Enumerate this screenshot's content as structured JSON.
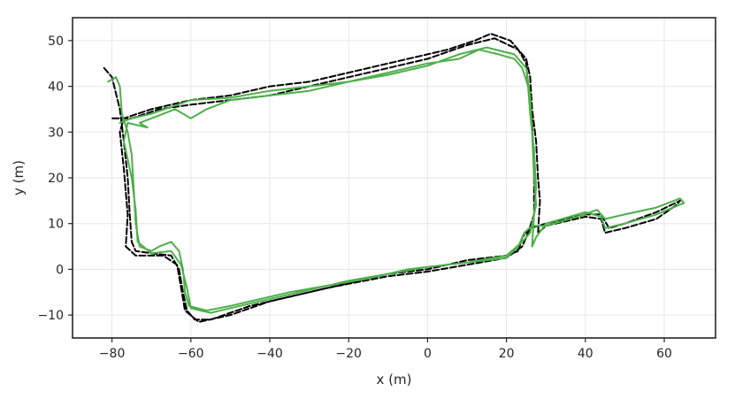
{
  "chart_data": {
    "type": "line",
    "title": "",
    "xlabel": "x (m)",
    "ylabel": "y (m)",
    "xlim": [
      -90,
      73
    ],
    "ylim": [
      -15,
      55
    ],
    "xticks": [
      -80,
      -60,
      -40,
      -20,
      0,
      20,
      40,
      60
    ],
    "yticks": [
      -10,
      0,
      10,
      20,
      30,
      40,
      50
    ],
    "xtick_labels": [
      "−80",
      "−60",
      "−40",
      "−20",
      "0",
      "20",
      "40",
      "60"
    ],
    "ytick_labels": [
      "−10",
      "0",
      "10",
      "20",
      "30",
      "40",
      "50"
    ],
    "grid": true,
    "legend": "none",
    "series": [
      {
        "color": "#000000",
        "style": "dashed",
        "points": [
          [
            -82,
            44
          ],
          [
            -80,
            42
          ],
          [
            -78,
            35
          ],
          [
            -77,
            28
          ],
          [
            -76,
            20
          ],
          [
            -75.5,
            12
          ],
          [
            -75,
            6
          ],
          [
            -74,
            4
          ],
          [
            -70,
            3.5
          ],
          [
            -65,
            3
          ],
          [
            -63,
            0
          ],
          [
            -62,
            -5
          ],
          [
            -61,
            -9
          ],
          [
            -59,
            -11
          ],
          [
            -55,
            -11
          ],
          [
            -45,
            -8
          ],
          [
            -35,
            -6
          ],
          [
            -20,
            -3
          ],
          [
            -10,
            -1
          ],
          [
            0,
            0
          ],
          [
            10,
            2
          ],
          [
            20,
            3
          ],
          [
            23,
            4
          ],
          [
            24,
            7
          ],
          [
            26,
            9
          ],
          [
            30,
            10
          ],
          [
            40,
            12
          ],
          [
            44,
            12
          ],
          [
            46,
            9
          ],
          [
            50,
            10
          ],
          [
            58,
            12.5
          ],
          [
            64,
            15
          ],
          [
            63,
            14
          ],
          [
            58,
            11
          ],
          [
            50,
            9
          ],
          [
            45,
            8
          ],
          [
            44,
            11
          ],
          [
            40,
            11.5
          ],
          [
            30,
            9.5
          ],
          [
            28,
            8
          ],
          [
            28.5,
            15
          ],
          [
            28,
            20
          ],
          [
            27.5,
            28
          ],
          [
            26.5,
            35
          ],
          [
            26,
            42
          ],
          [
            25,
            46
          ],
          [
            21,
            50
          ],
          [
            16,
            51.5
          ],
          [
            12,
            50
          ],
          [
            5,
            48
          ],
          [
            0,
            47
          ],
          [
            -10,
            45
          ],
          [
            -20,
            43
          ],
          [
            -30,
            41
          ],
          [
            -40,
            40
          ],
          [
            -50,
            38
          ],
          [
            -60,
            37
          ],
          [
            -70,
            35
          ],
          [
            -77,
            33
          ],
          [
            -78,
            30
          ],
          [
            -77,
            22
          ],
          [
            -76,
            12
          ],
          [
            -76.5,
            5
          ],
          [
            -74,
            3
          ],
          [
            -67,
            3
          ],
          [
            -63.5,
            1
          ],
          [
            -62.5,
            -4
          ],
          [
            -61.5,
            -9
          ],
          [
            -58,
            -11.5
          ],
          [
            -50,
            -10
          ],
          [
            -40,
            -7
          ],
          [
            -25,
            -4
          ],
          [
            -10,
            -1.5
          ],
          [
            0,
            -0.5
          ],
          [
            10,
            1
          ],
          [
            20,
            2.5
          ],
          [
            24,
            5
          ],
          [
            25.5,
            8
          ],
          [
            27,
            12
          ],
          [
            27,
            22
          ],
          [
            26.5,
            32
          ],
          [
            25.5,
            40
          ],
          [
            25,
            45
          ],
          [
            23,
            48
          ],
          [
            17,
            50.5
          ],
          [
            10,
            49
          ],
          [
            0,
            46
          ],
          [
            -10,
            44
          ],
          [
            -20,
            42
          ],
          [
            -30,
            40
          ],
          [
            -40,
            38
          ],
          [
            -50,
            37
          ],
          [
            -60,
            36
          ],
          [
            -68,
            35
          ],
          [
            -75,
            33
          ],
          [
            -80,
            33
          ]
        ]
      },
      {
        "color": "#4daf4a",
        "style": "solid",
        "points": [
          [
            -81,
            41
          ],
          [
            -79,
            42
          ],
          [
            -78,
            40
          ],
          [
            -77.5,
            34
          ],
          [
            -76,
            30
          ],
          [
            -75,
            25
          ],
          [
            -74.5,
            18
          ],
          [
            -74,
            10
          ],
          [
            -73,
            5
          ],
          [
            -70,
            4
          ],
          [
            -68,
            5
          ],
          [
            -65,
            6
          ],
          [
            -63,
            4
          ],
          [
            -62,
            0
          ],
          [
            -61.5,
            -5
          ],
          [
            -60.5,
            -8
          ],
          [
            -56,
            -9
          ],
          [
            -50,
            -8
          ],
          [
            -45,
            -7
          ],
          [
            -35,
            -5
          ],
          [
            -25,
            -3.5
          ],
          [
            -15,
            -2
          ],
          [
            -5,
            0
          ],
          [
            5,
            1
          ],
          [
            15,
            2
          ],
          [
            20,
            2.5
          ],
          [
            23,
            5
          ],
          [
            24.5,
            8
          ],
          [
            26.5,
            9.5
          ],
          [
            30,
            9.5
          ],
          [
            38,
            11.5
          ],
          [
            43,
            13
          ],
          [
            45,
            11
          ],
          [
            50,
            12
          ],
          [
            58,
            13.5
          ],
          [
            64,
            15.5
          ],
          [
            65,
            14.5
          ],
          [
            58,
            12
          ],
          [
            50,
            10
          ],
          [
            45,
            9
          ],
          [
            44,
            11.5
          ],
          [
            40,
            12.5
          ],
          [
            30,
            10
          ],
          [
            27.5,
            7
          ],
          [
            26.5,
            5
          ],
          [
            27,
            12
          ],
          [
            27.5,
            18
          ],
          [
            27,
            26
          ],
          [
            26,
            34
          ],
          [
            25.5,
            40
          ],
          [
            24,
            44
          ],
          [
            22,
            46
          ],
          [
            18,
            47
          ],
          [
            13,
            48
          ],
          [
            8,
            46
          ],
          [
            0,
            45
          ],
          [
            -10,
            43
          ],
          [
            -20,
            41
          ],
          [
            -30,
            39
          ],
          [
            -40,
            38
          ],
          [
            -50,
            37
          ],
          [
            -56,
            35
          ],
          [
            -60,
            33
          ],
          [
            -64,
            35
          ],
          [
            -70,
            33
          ],
          [
            -73,
            32
          ],
          [
            -71,
            31
          ],
          [
            -76,
            32
          ],
          [
            -77,
            28
          ],
          [
            -75,
            20
          ],
          [
            -74,
            13
          ],
          [
            -73.5,
            6
          ],
          [
            -70,
            3.5
          ],
          [
            -65,
            4
          ],
          [
            -62.5,
            1
          ],
          [
            -61,
            -4
          ],
          [
            -60,
            -8.5
          ],
          [
            -55,
            -9.5
          ],
          [
            -45,
            -7.5
          ],
          [
            -35,
            -5.5
          ],
          [
            -20,
            -2.5
          ],
          [
            -10,
            -1
          ],
          [
            0,
            0.5
          ],
          [
            10,
            1.5
          ],
          [
            20,
            3
          ],
          [
            24,
            6
          ],
          [
            26,
            8
          ],
          [
            27.5,
            14
          ],
          [
            27,
            20
          ],
          [
            26.5,
            30
          ],
          [
            26,
            38
          ],
          [
            25,
            44
          ],
          [
            22,
            47
          ],
          [
            15,
            48.5
          ],
          [
            8,
            47
          ],
          [
            0,
            44.5
          ],
          [
            -10,
            42.5
          ],
          [
            -20,
            41
          ],
          [
            -30,
            40
          ],
          [
            -40,
            39
          ],
          [
            -50,
            37.5
          ],
          [
            -60,
            37
          ],
          [
            -70,
            34
          ],
          [
            -75,
            33
          ],
          [
            -78,
            32
          ]
        ]
      }
    ]
  }
}
